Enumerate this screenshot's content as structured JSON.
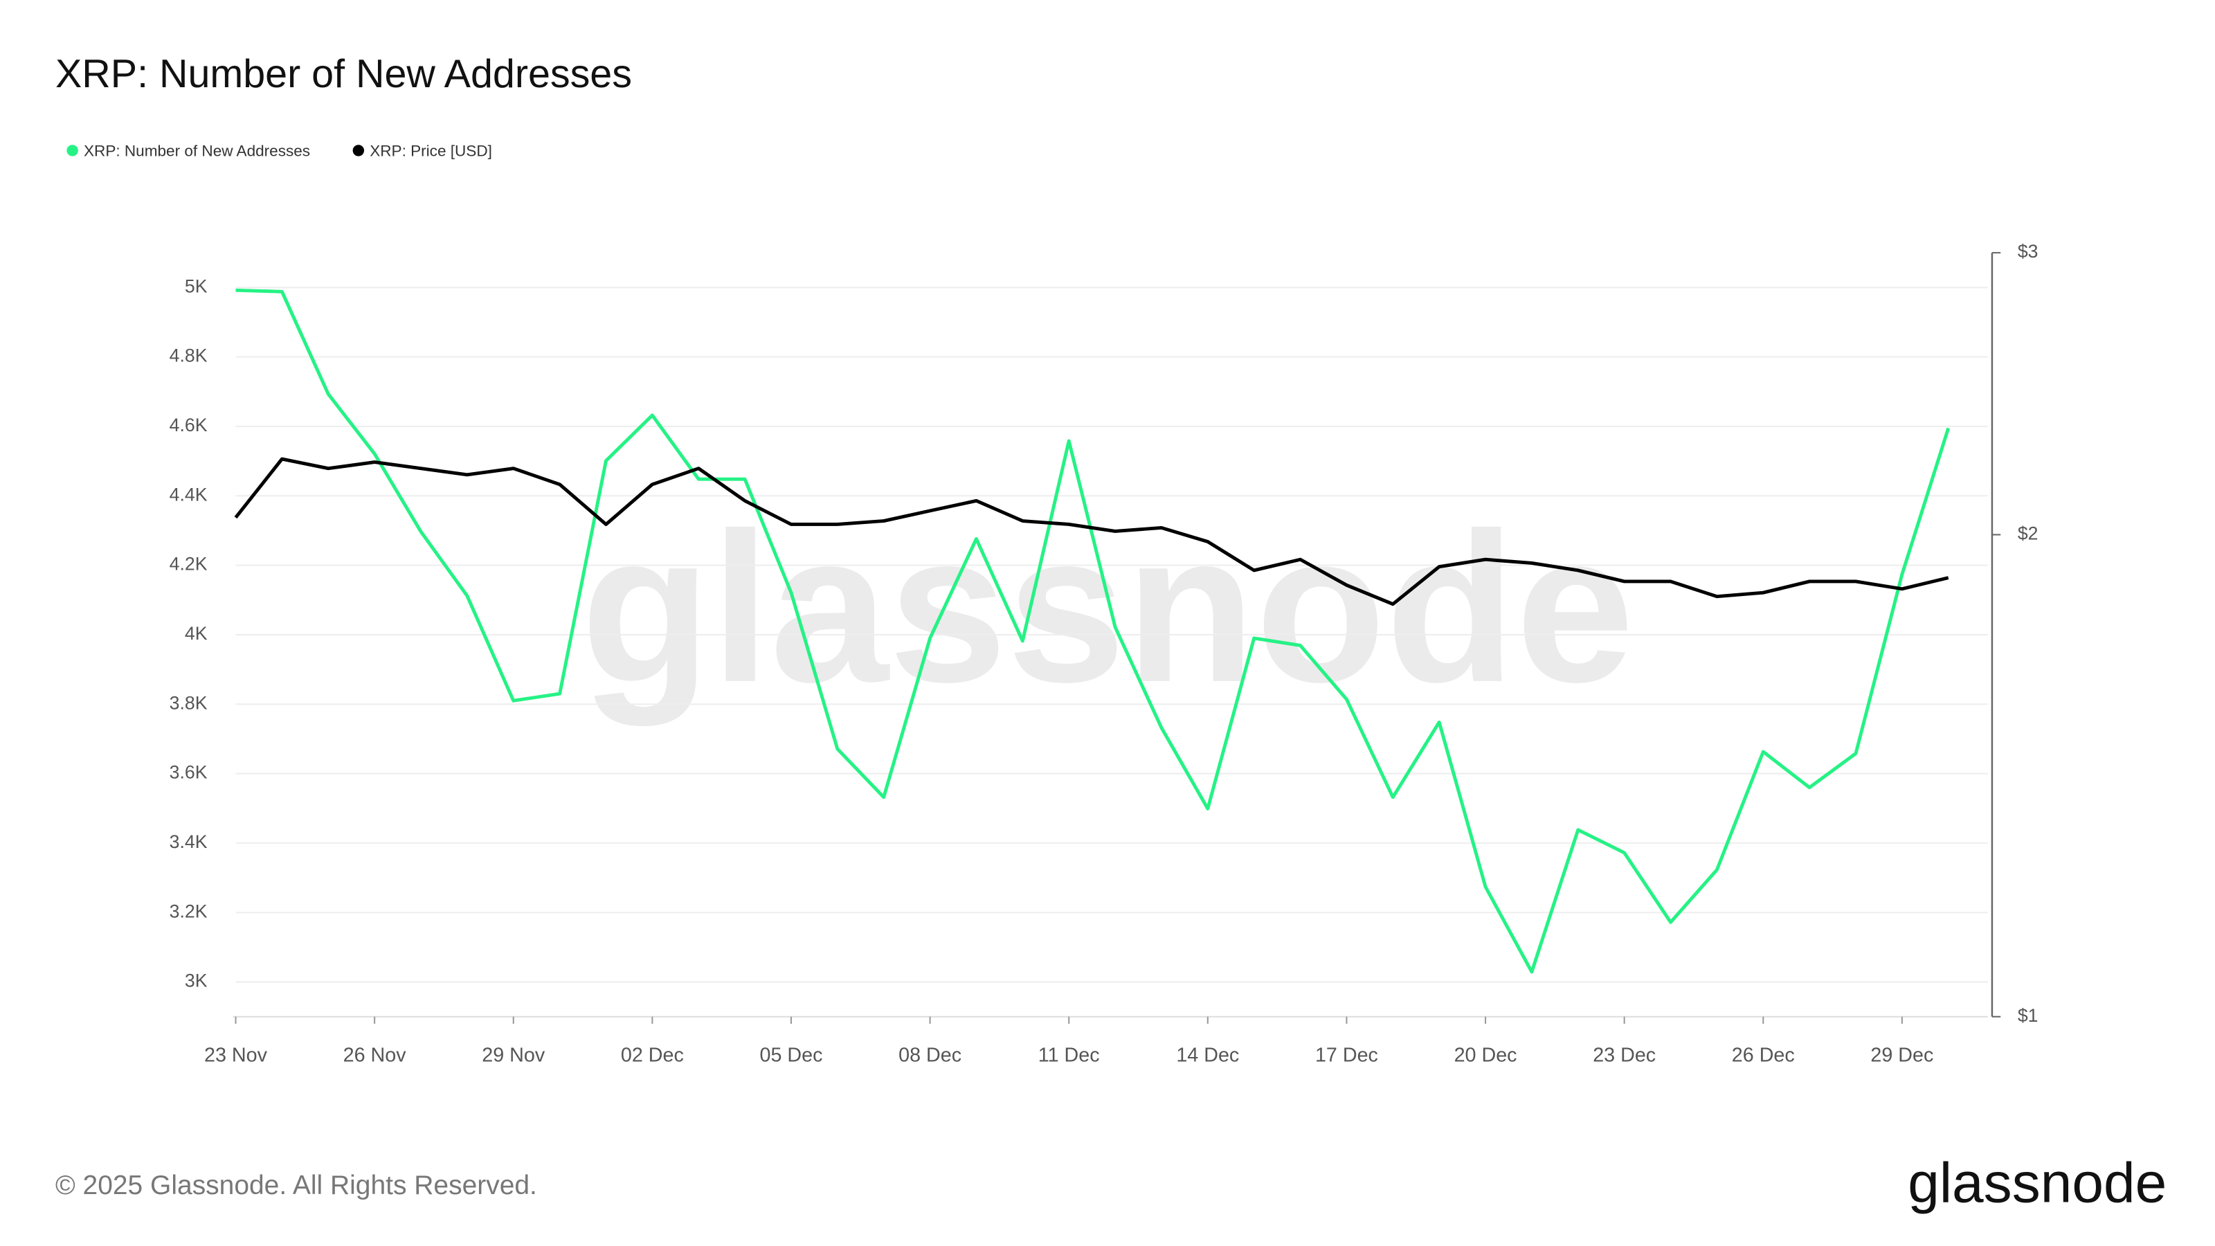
{
  "chart_data": {
    "type": "line",
    "title": "XRP: Number of New Addresses",
    "categories": [
      "23 Nov",
      null,
      null,
      "26 Nov",
      null,
      null,
      "29 Nov",
      null,
      null,
      "02 Dec",
      null,
      null,
      "05 Dec",
      null,
      null,
      "08 Dec",
      null,
      null,
      "11 Dec",
      null,
      null,
      "14 Dec",
      null,
      null,
      "17 Dec",
      null,
      null,
      "20 Dec",
      null,
      null,
      "23 Dec",
      null,
      null,
      "26 Dec",
      null,
      null,
      "29 Dec",
      null
    ],
    "series": [
      {
        "name": "XRP: Number of New Addresses",
        "color": "#25f285",
        "axis": "y",
        "values": [
          4992,
          4988,
          4693,
          4521,
          4297,
          4112,
          3810,
          3830,
          4501,
          4632,
          4448,
          4448,
          4121,
          3671,
          3532,
          3990,
          4276,
          3982,
          4558,
          4022,
          3732,
          3499,
          3990,
          3969,
          3814,
          3532,
          3748,
          3274,
          3029,
          3438,
          3372,
          3172,
          3323,
          3663,
          3560,
          3658,
          4174,
          4595
        ]
      },
      {
        "name": "XRP: Price [USD]",
        "color": "#000000",
        "axis": "y2",
        "values": [
          2.05,
          2.23,
          2.2,
          2.22,
          2.2,
          2.18,
          2.2,
          2.15,
          2.03,
          2.15,
          2.2,
          2.1,
          2.03,
          2.03,
          2.04,
          2.07,
          2.1,
          2.04,
          2.03,
          2.01,
          2.02,
          1.98,
          1.9,
          1.93,
          1.86,
          1.81,
          1.91,
          1.93,
          1.92,
          1.9,
          1.87,
          1.87,
          1.83,
          1.84,
          1.87,
          1.87,
          1.85,
          1.88
        ]
      }
    ],
    "ylim": [
      2900,
      5100
    ],
    "yticks": [
      {
        "value": 3000,
        "label": "3K"
      },
      {
        "value": 3200,
        "label": "3.2K"
      },
      {
        "value": 3400,
        "label": "3.4K"
      },
      {
        "value": 3600,
        "label": "3.6K"
      },
      {
        "value": 3800,
        "label": "3.8K"
      },
      {
        "value": 4000,
        "label": "4K"
      },
      {
        "value": 4200,
        "label": "4.2K"
      },
      {
        "value": 4400,
        "label": "4.4K"
      },
      {
        "value": 4600,
        "label": "4.6K"
      },
      {
        "value": 4800,
        "label": "4.8K"
      },
      {
        "value": 5000,
        "label": "5K"
      }
    ],
    "y2lim": [
      1,
      3
    ],
    "y2log": true,
    "y2ticks": [
      {
        "value": 1,
        "label": "$1"
      },
      {
        "value": 2,
        "label": "$2"
      },
      {
        "value": 3,
        "label": "$3"
      }
    ],
    "grid": true
  },
  "watermark": "glassnode",
  "footer": "© 2025 Glassnode. All Rights Reserved.",
  "logo": "glassnode"
}
